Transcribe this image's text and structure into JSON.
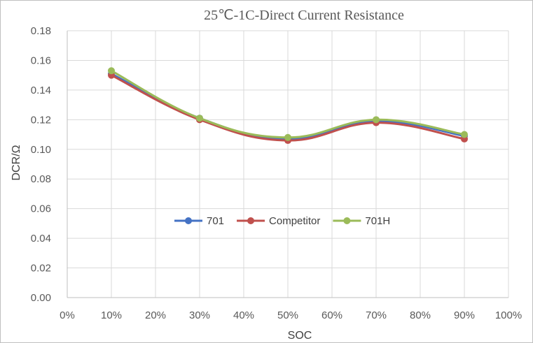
{
  "chart_data": {
    "type": "line",
    "title": "25℃-1C-Direct Current Resistance",
    "xlabel": "SOC",
    "ylabel": "DCR/Ω",
    "x_ticks": [
      "0%",
      "10%",
      "20%",
      "30%",
      "40%",
      "50%",
      "60%",
      "70%",
      "80%",
      "90%",
      "100%"
    ],
    "y_ticks": [
      "0.00",
      "0.02",
      "0.04",
      "0.06",
      "0.08",
      "0.10",
      "0.12",
      "0.14",
      "0.16",
      "0.18"
    ],
    "xlim": [
      0,
      100
    ],
    "ylim": [
      0,
      0.18
    ],
    "x": [
      10,
      30,
      50,
      70,
      90
    ],
    "grid": true,
    "legend_position": "center",
    "smooth": true,
    "series": [
      {
        "name": "701",
        "color": "#4472c4",
        "values": [
          0.151,
          0.121,
          0.107,
          0.119,
          0.109
        ]
      },
      {
        "name": "Competitor",
        "color": "#c0504d",
        "values": [
          0.15,
          0.12,
          0.106,
          0.118,
          0.107
        ]
      },
      {
        "name": "701H",
        "color": "#9bbb59",
        "values": [
          0.153,
          0.121,
          0.108,
          0.12,
          0.11
        ]
      }
    ]
  }
}
